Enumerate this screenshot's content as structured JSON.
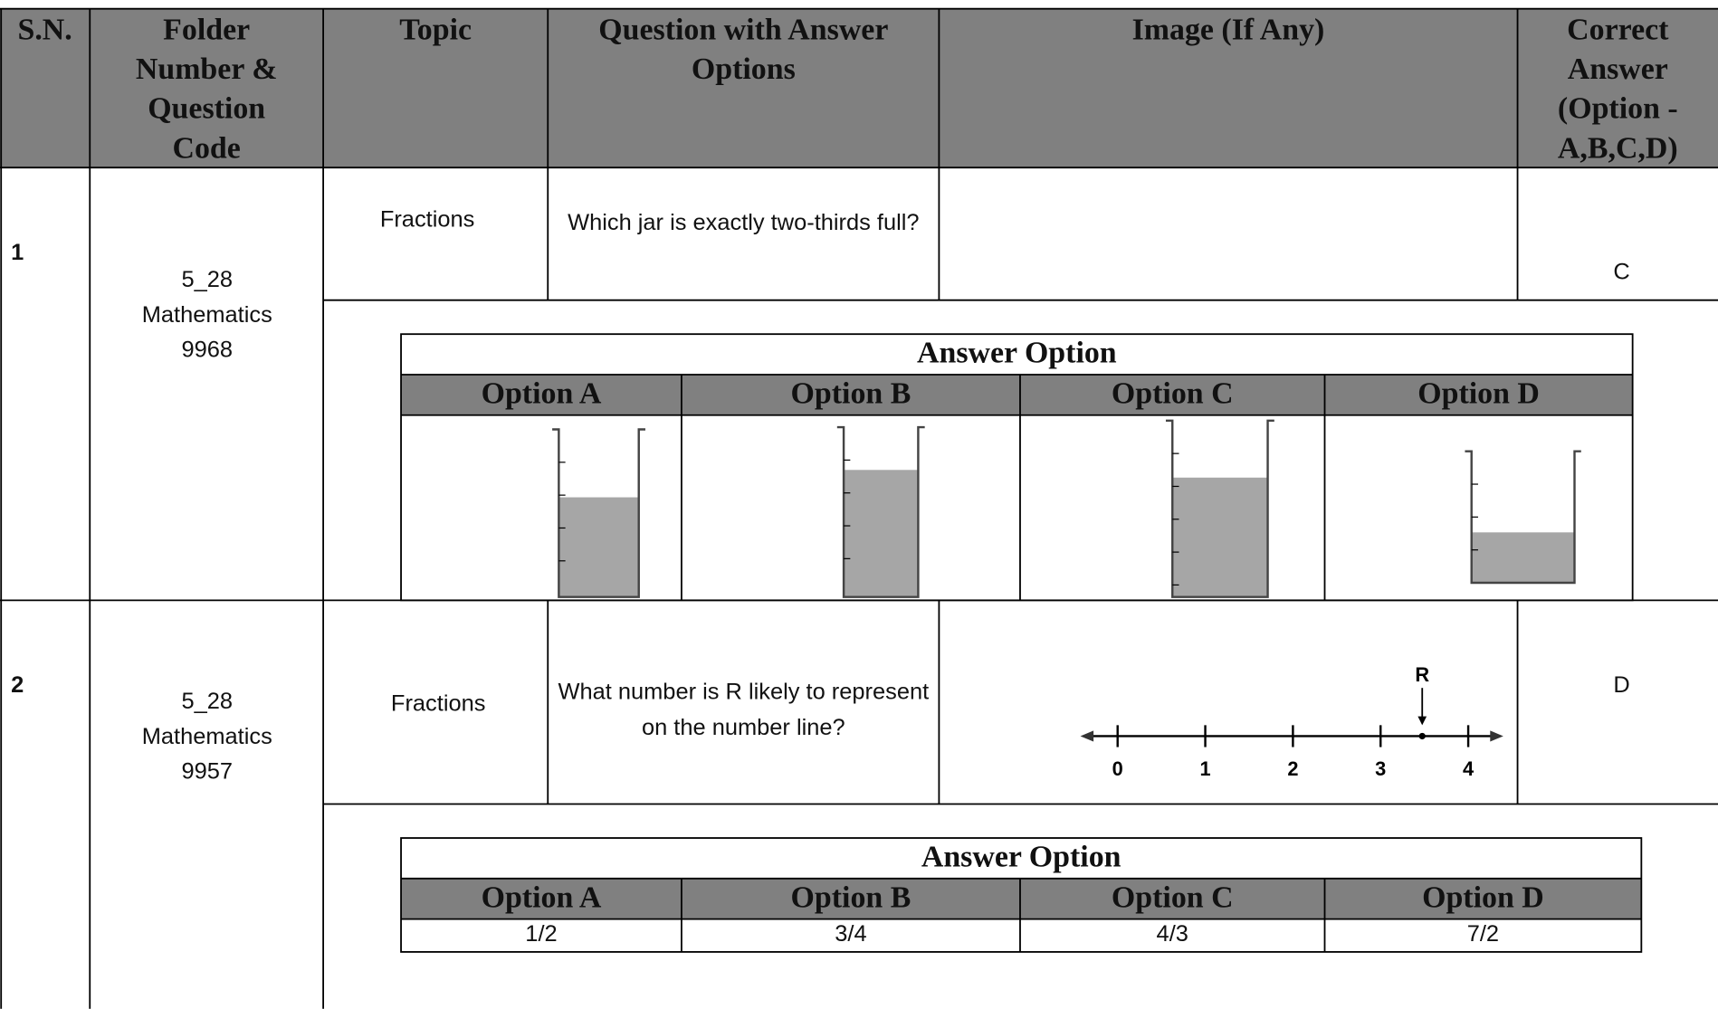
{
  "header": {
    "columns": [
      "S.N.",
      "Folder Number & Question Code",
      "Topic",
      "Question with Answer Options",
      "Image (If Any)",
      "Correct Answer (Option - A,B,C,D)"
    ]
  },
  "rows": [
    {
      "sn": "1",
      "folder": [
        "5_28",
        "Mathematics",
        "9968"
      ],
      "topic": "Fractions",
      "question": "Which jar is exactly two-thirds full?",
      "correct": "C",
      "answer_option": {
        "title": "Answer Option",
        "options": [
          "Option A",
          "Option B",
          "Option C",
          "Option D"
        ]
      }
    },
    {
      "sn": "2",
      "folder": [
        "5_28",
        "Mathematics",
        "9957"
      ],
      "topic": "Fractions",
      "question": "What number is R likely to represent on the number line?",
      "correct": "D",
      "image": {
        "labels": [
          "0",
          "1",
          "2",
          "3",
          "4"
        ],
        "marker": "R"
      },
      "answer_option": {
        "title": "Answer Option",
        "options": [
          "Option A",
          "Option B",
          "Option C",
          "Option D"
        ],
        "values": [
          "1/2",
          "3/4",
          "4/3",
          "7/2"
        ]
      }
    }
  ]
}
